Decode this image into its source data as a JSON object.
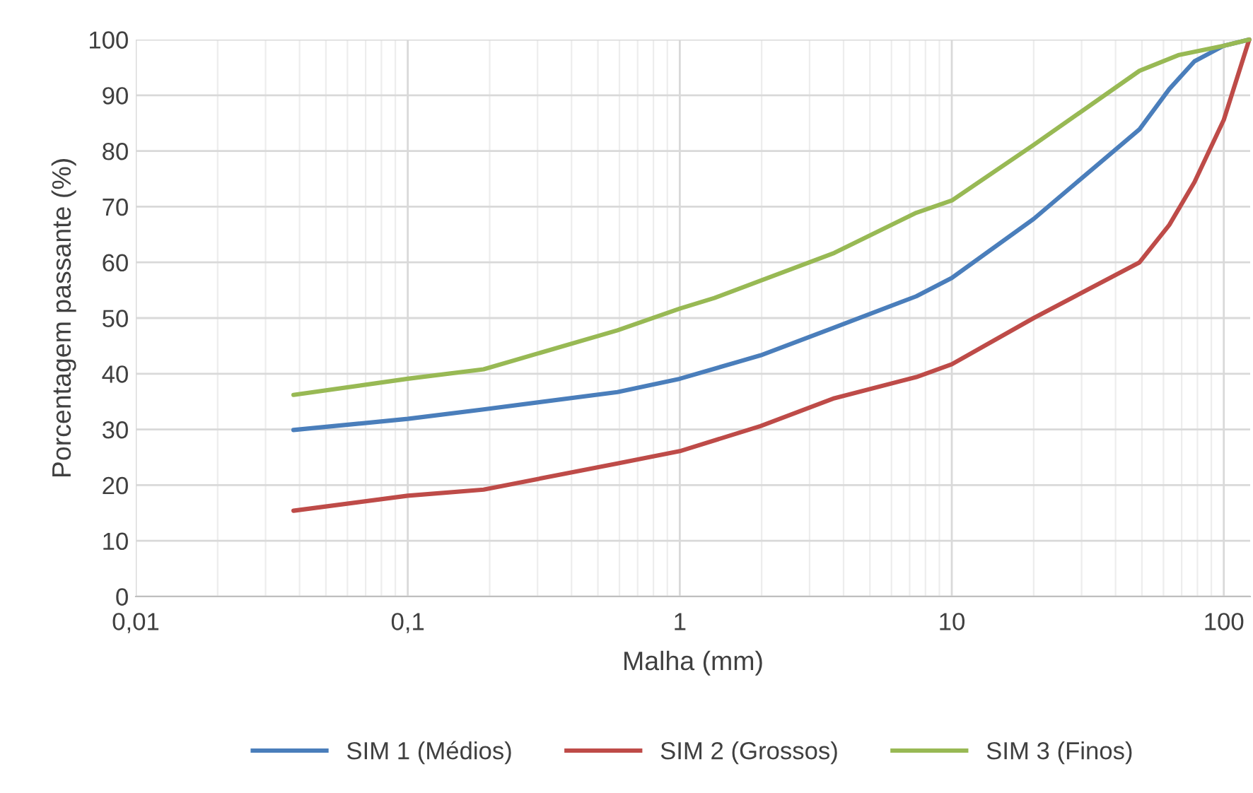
{
  "chart_data": {
    "type": "line",
    "xlabel": "Malha (mm)",
    "ylabel": "Porcentagem passante (%)",
    "log": "x",
    "grid": true,
    "legend": "bottom",
    "marker": "none",
    "line_style": "solid",
    "xlim": [
      0.01,
      125
    ],
    "xticks": [
      {
        "value": 0.01,
        "label": "0,01"
      },
      {
        "value": 0.1,
        "label": "0,1"
      },
      1,
      10,
      100
    ],
    "ylim": [
      0,
      100
    ],
    "yticks": [
      0,
      10,
      20,
      30,
      40,
      50,
      60,
      70,
      80,
      90,
      100
    ],
    "series": [
      {
        "name": "SIM 1 (Médios)",
        "color": "#4a7ebb",
        "x": [
          0.038,
          0.1,
          0.19,
          0.59,
          1,
          1.98,
          3.7,
          7.4,
          10,
          20,
          49,
          63,
          78,
          100,
          124
        ],
        "values": [
          29.9,
          31.9,
          33.6,
          36.7,
          39.1,
          43.3,
          48.3,
          53.9,
          57.2,
          67.8,
          83.9,
          91.1,
          96.1,
          98.9,
          100
        ]
      },
      {
        "name": "SIM 2 (Grossos)",
        "color": "#be4b48",
        "x": [
          0.038,
          0.1,
          0.19,
          0.59,
          1,
          1.98,
          3.7,
          7.4,
          10,
          20,
          49,
          63,
          78,
          100,
          124
        ],
        "values": [
          15.4,
          18.1,
          19.2,
          23.9,
          26.1,
          30.6,
          35.6,
          39.4,
          41.7,
          50,
          60,
          66.7,
          74.4,
          85.6,
          100
        ]
      },
      {
        "name": "SIM 3 (Finos)",
        "color": "#98b954",
        "x": [
          0.038,
          0.1,
          0.19,
          0.59,
          1,
          1.34,
          1.98,
          3.7,
          7.4,
          10,
          20,
          49,
          68,
          100,
          124
        ],
        "values": [
          36.2,
          39.1,
          40.8,
          47.8,
          51.7,
          53.6,
          56.7,
          61.7,
          68.9,
          71.1,
          81.1,
          94.4,
          97.2,
          98.9,
          100
        ]
      }
    ]
  }
}
